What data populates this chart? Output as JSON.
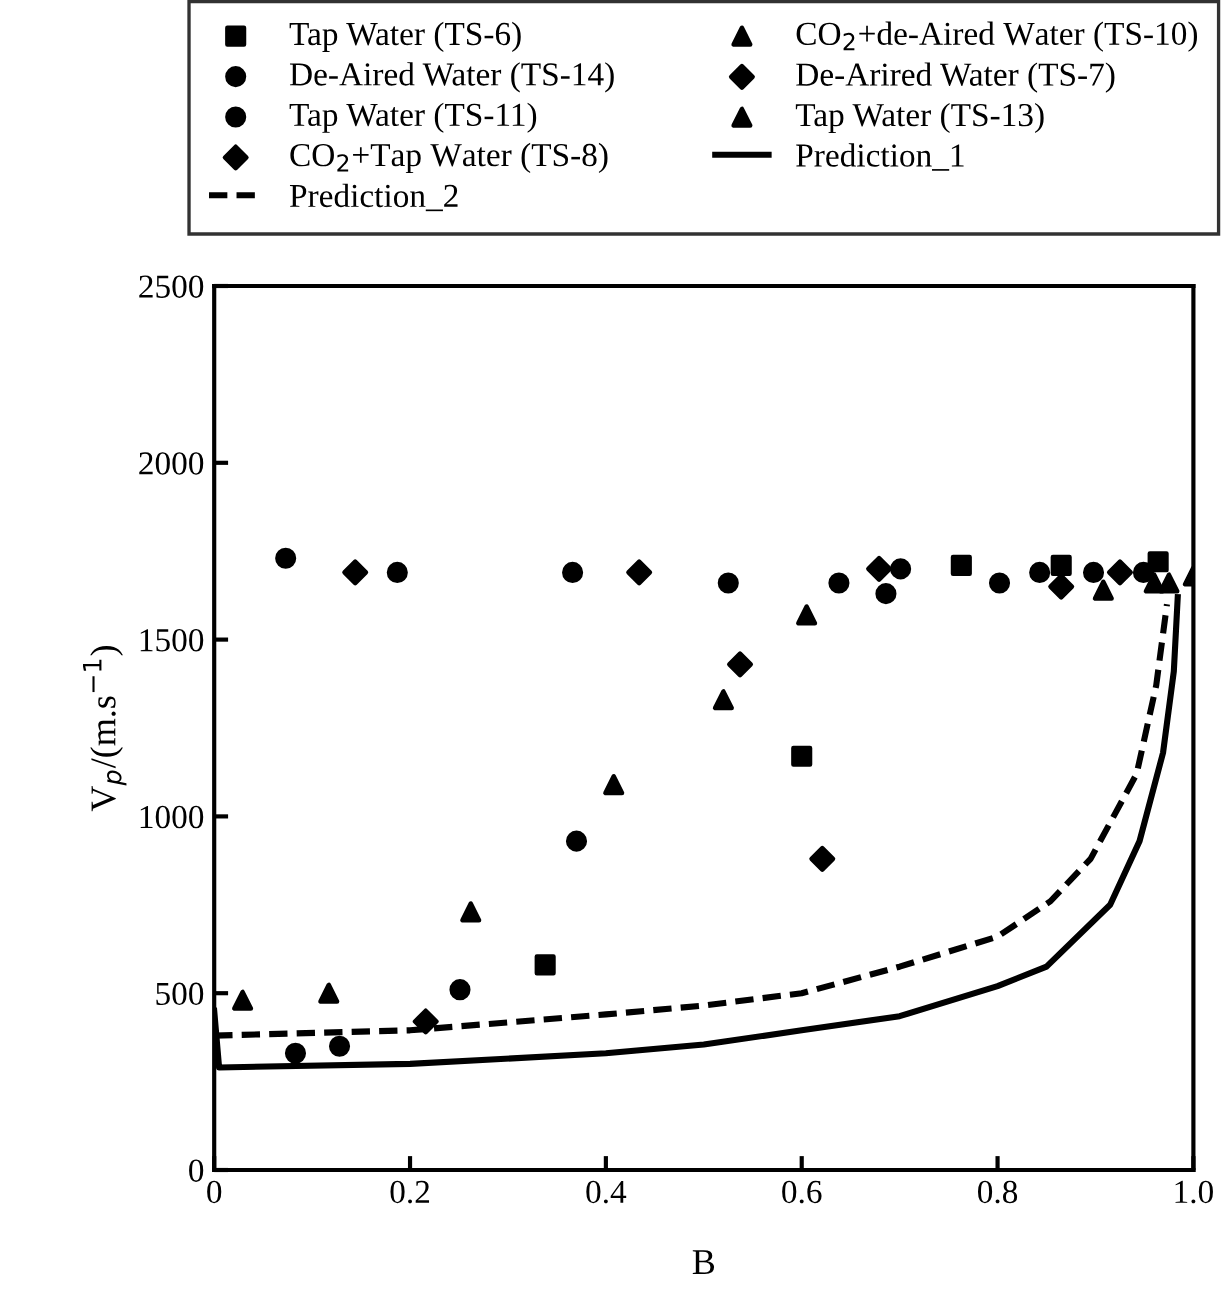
{
  "chart_data": {
    "type": "scatter",
    "xlabel": "B",
    "ylabel": "V$_{p}$/(m.s$^{−1}$)",
    "xlim": [
      0,
      1
    ],
    "ylim": [
      0,
      2500
    ],
    "xticks": [
      {
        "value": 0,
        "label": "0"
      },
      0.2,
      0.4,
      0.6,
      0.8,
      {
        "value": 1,
        "label": "1.0"
      }
    ],
    "yticks": [
      0,
      500,
      1000,
      1500,
      2000,
      2500
    ],
    "grid": false,
    "legend": "top",
    "series": [
      {
        "name": "Tap Water (TS-6)",
        "color": "#000000",
        "marker": "square",
        "x": [
          0.338,
          0.6,
          0.763,
          0.865,
          0.964
        ],
        "values": [
          580,
          1170,
          1710,
          1710,
          1720
        ]
      },
      {
        "name": "CO$_{2}$+de-Aired Water (TS-10)",
        "color": "#000000",
        "marker": "triangle",
        "x": [
          0.908,
          0.96,
          0.975,
          1.0
        ],
        "values": [
          1640,
          1660,
          1660,
          1680
        ]
      },
      {
        "name": "De-Aired Water (TS-14)",
        "color": "#000000",
        "marker": "circle",
        "x": [
          0.073,
          0.187,
          0.366,
          0.525,
          0.638,
          0.701,
          0.949
        ],
        "values": [
          1730,
          1690,
          1690,
          1660,
          1660,
          1700,
          1690
        ]
      },
      {
        "name": "De-Arired Water (TS-7)",
        "color": "#000000",
        "marker": "diamond",
        "x": [
          0.144,
          0.434,
          0.679,
          0.865
        ],
        "values": [
          1690,
          1690,
          1700,
          1650
        ]
      },
      {
        "name": "Tap Water (TS-11)",
        "color": "#000000",
        "marker": "circle",
        "x": [
          0.083,
          0.128,
          0.251,
          0.37,
          0.686,
          0.802,
          0.843,
          0.898
        ],
        "values": [
          330,
          350,
          510,
          930,
          1630,
          1660,
          1690,
          1690
        ]
      },
      {
        "name": "Tap Water (TS-13)",
        "color": "#000000",
        "marker": "triangle",
        "x": [
          0.029,
          0.117,
          0.262,
          0.408,
          0.52,
          0.605
        ],
        "values": [
          480,
          500,
          730,
          1090,
          1330,
          1570
        ]
      },
      {
        "name": "CO$_{2}$+Tap Water (TS-8)",
        "color": "#000000",
        "marker": "diamond",
        "x": [
          0.216,
          0.537,
          0.621,
          0.925
        ],
        "values": [
          420,
          1430,
          880,
          1690
        ]
      },
      {
        "name": "Prediction_1",
        "type": "line",
        "color": "#000000",
        "marker": "none",
        "line_style": "solid",
        "x": [
          0,
          0.005,
          0.2,
          0.4,
          0.5,
          0.6,
          0.7,
          0.8,
          0.85,
          0.915,
          0.945,
          0.969,
          0.98,
          0.984
        ],
        "values": [
          450,
          290,
          300,
          330,
          355,
          395,
          435,
          520,
          575,
          750,
          930,
          1180,
          1410,
          1620
        ]
      },
      {
        "name": "Prediction_2",
        "type": "line",
        "color": "#000000",
        "marker": "none",
        "line_style": "dashed",
        "x": [
          0,
          0.2,
          0.4,
          0.5,
          0.6,
          0.7,
          0.8,
          0.854,
          0.895,
          0.942,
          0.962,
          0.973
        ],
        "values": [
          380,
          395,
          440,
          465,
          500,
          575,
          660,
          760,
          880,
          1120,
          1370,
          1600
        ]
      }
    ]
  }
}
